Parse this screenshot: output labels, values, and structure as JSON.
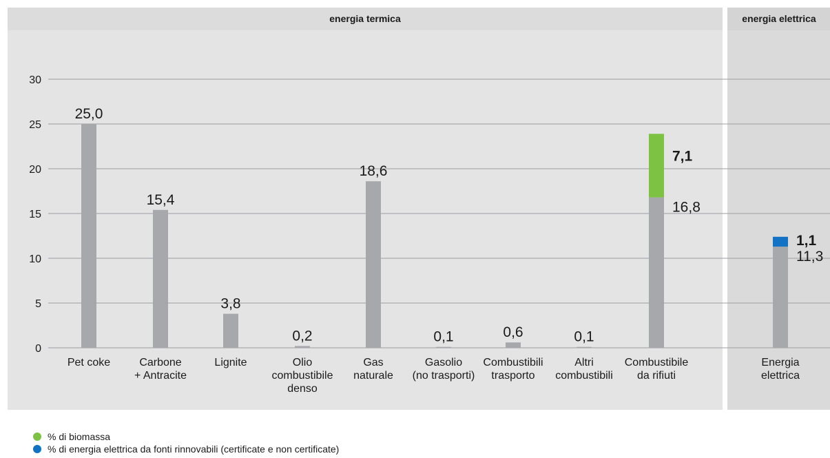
{
  "chart_data": {
    "type": "bar",
    "sections": [
      {
        "title": "energia termica"
      },
      {
        "title": "energia elettrica"
      }
    ],
    "ylim": [
      0,
      30
    ],
    "yticks": [
      "0",
      "5",
      "10",
      "15",
      "20",
      "25",
      "30"
    ],
    "categories": [
      [
        "Pet coke"
      ],
      [
        "Carbone",
        "+ Antracite"
      ],
      [
        "Lignite"
      ],
      [
        "Olio",
        "combustibile",
        "denso"
      ],
      [
        "Gas",
        "naturale"
      ],
      [
        "Gasolio",
        "(no trasporti)"
      ],
      [
        "Combustibili",
        "trasporto"
      ],
      [
        "Altri",
        "combustibili"
      ],
      [
        "Combustibile",
        "da rifiuti"
      ],
      [
        "Energia",
        "elettrica"
      ]
    ],
    "series": [
      {
        "values": [
          25.0,
          15.4,
          3.8,
          0.2,
          18.6,
          0.1,
          0.6,
          0.1,
          16.8,
          11.3
        ],
        "labels": [
          "25,0",
          "15,4",
          "3,8",
          "0,2",
          "18,6",
          "0,1",
          "0,6",
          "0,1",
          "16,8",
          "11,3"
        ],
        "color": "#a7a8ab"
      },
      {
        "name": "% di biomassa",
        "values": [
          null,
          null,
          null,
          null,
          null,
          null,
          null,
          null,
          7.1,
          null
        ],
        "labels": [
          null,
          null,
          null,
          null,
          null,
          null,
          null,
          null,
          "7,1",
          null
        ],
        "color": "#7dc243"
      },
      {
        "name": "% di energia elettrica da fonti rinnovabili (certificate e non certificate)",
        "values": [
          null,
          null,
          null,
          null,
          null,
          null,
          null,
          null,
          null,
          1.1
        ],
        "labels": [
          null,
          null,
          null,
          null,
          null,
          null,
          null,
          null,
          null,
          "1,1"
        ],
        "color": "#1273c4"
      }
    ],
    "grid": true
  },
  "colors": {
    "panel_background": "#e4e4e5",
    "header_background": "#dcdcdd",
    "electric_panel": "#dadadb",
    "gridline": "#9d9d9f",
    "bar": "#a7a8ab",
    "biomass": "#7dc243",
    "renewable": "#1273c4"
  }
}
